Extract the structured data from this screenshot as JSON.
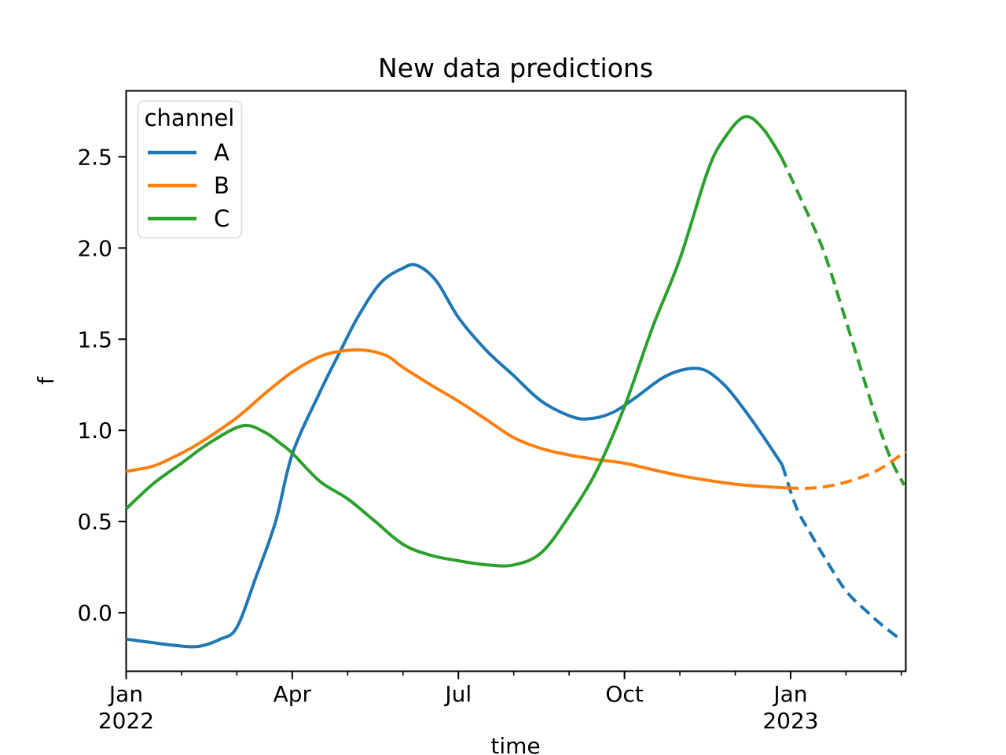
{
  "figure": {
    "background": "#ffffff",
    "spine_color": "#000000"
  },
  "chart_data": {
    "type": "line",
    "title": "New data predictions",
    "xlabel": "time",
    "ylabel": "f",
    "x_unit": "months since Jan 2022",
    "xlim": [
      0,
      14.08
    ],
    "ylim": [
      -0.321,
      2.862
    ],
    "grid": false,
    "x_ticks": [
      {
        "x": 0,
        "label": "Jan",
        "sublabel": "2022"
      },
      {
        "x": 3,
        "label": "Apr",
        "sublabel": ""
      },
      {
        "x": 6,
        "label": "Jul",
        "sublabel": ""
      },
      {
        "x": 9,
        "label": "Oct",
        "sublabel": ""
      },
      {
        "x": 12,
        "label": "Jan",
        "sublabel": "2023"
      }
    ],
    "x_minor_ticks": [
      1,
      2,
      4,
      5,
      7,
      8,
      10,
      11,
      13,
      14
    ],
    "y_ticks": [
      0.0,
      0.5,
      1.0,
      1.5,
      2.0,
      2.5
    ],
    "line_styles": {
      "solid": "observed data",
      "dashed": "prediction"
    },
    "legend": {
      "title": "channel",
      "position": "upper left",
      "labels": [
        "A",
        "B",
        "C"
      ]
    },
    "series": [
      {
        "name": "A",
        "color": "#1f77b4",
        "solid": [
          [
            0,
            -0.145
          ],
          [
            0.5,
            -0.165
          ],
          [
            0.9,
            -0.18
          ],
          [
            1.3,
            -0.185
          ],
          [
            1.7,
            -0.145
          ],
          [
            2.0,
            -0.08
          ],
          [
            2.35,
            0.2
          ],
          [
            2.7,
            0.5
          ],
          [
            3.0,
            0.87
          ],
          [
            3.5,
            1.21
          ],
          [
            3.86,
            1.43
          ],
          [
            4.2,
            1.63
          ],
          [
            4.6,
            1.81
          ],
          [
            5.0,
            1.89
          ],
          [
            5.25,
            1.905
          ],
          [
            5.6,
            1.82
          ],
          [
            6.0,
            1.62
          ],
          [
            6.5,
            1.44
          ],
          [
            7.0,
            1.3
          ],
          [
            7.5,
            1.16
          ],
          [
            8.05,
            1.075
          ],
          [
            8.4,
            1.065
          ],
          [
            8.8,
            1.1
          ],
          [
            9.2,
            1.18
          ],
          [
            9.7,
            1.29
          ],
          [
            10.1,
            1.335
          ],
          [
            10.45,
            1.33
          ],
          [
            10.8,
            1.25
          ],
          [
            11.1,
            1.14
          ],
          [
            11.5,
            0.97
          ],
          [
            11.85,
            0.81
          ]
        ],
        "dashed": [
          [
            11.85,
            0.81
          ],
          [
            12.1,
            0.58
          ],
          [
            12.35,
            0.44
          ],
          [
            12.6,
            0.31
          ],
          [
            13.0,
            0.12
          ],
          [
            13.4,
            0.0
          ],
          [
            13.7,
            -0.08
          ],
          [
            14.0,
            -0.15
          ]
        ]
      },
      {
        "name": "B",
        "color": "#ff7f0e",
        "solid": [
          [
            0,
            0.775
          ],
          [
            0.5,
            0.805
          ],
          [
            1.0,
            0.875
          ],
          [
            1.35,
            0.935
          ],
          [
            2.0,
            1.07
          ],
          [
            2.5,
            1.2
          ],
          [
            3.0,
            1.32
          ],
          [
            3.5,
            1.405
          ],
          [
            3.9,
            1.435
          ],
          [
            4.3,
            1.44
          ],
          [
            4.7,
            1.41
          ],
          [
            5.0,
            1.345
          ],
          [
            5.5,
            1.25
          ],
          [
            6.0,
            1.16
          ],
          [
            6.5,
            1.06
          ],
          [
            7.0,
            0.96
          ],
          [
            7.5,
            0.9
          ],
          [
            8.0,
            0.865
          ],
          [
            8.5,
            0.84
          ],
          [
            9.0,
            0.82
          ],
          [
            9.5,
            0.785
          ],
          [
            10.0,
            0.752
          ],
          [
            10.5,
            0.726
          ],
          [
            11.0,
            0.705
          ],
          [
            11.5,
            0.692
          ],
          [
            11.93,
            0.685
          ]
        ],
        "dashed": [
          [
            11.93,
            0.685
          ],
          [
            12.3,
            0.682
          ],
          [
            12.7,
            0.695
          ],
          [
            13.1,
            0.725
          ],
          [
            13.5,
            0.77
          ],
          [
            13.8,
            0.825
          ],
          [
            14.08,
            0.885
          ]
        ]
      },
      {
        "name": "C",
        "color": "#2ca02c",
        "solid": [
          [
            0,
            0.57
          ],
          [
            0.5,
            0.71
          ],
          [
            1.0,
            0.82
          ],
          [
            1.5,
            0.93
          ],
          [
            2.1,
            1.025
          ],
          [
            2.5,
            0.99
          ],
          [
            2.8,
            0.925
          ],
          [
            3.0,
            0.875
          ],
          [
            3.5,
            0.72
          ],
          [
            4.0,
            0.625
          ],
          [
            4.5,
            0.5
          ],
          [
            5.0,
            0.375
          ],
          [
            5.5,
            0.315
          ],
          [
            6.0,
            0.285
          ],
          [
            6.5,
            0.263
          ],
          [
            7.0,
            0.262
          ],
          [
            7.5,
            0.33
          ],
          [
            8.0,
            0.53
          ],
          [
            8.5,
            0.78
          ],
          [
            9.0,
            1.13
          ],
          [
            9.5,
            1.56
          ],
          [
            10.0,
            1.94
          ],
          [
            10.5,
            2.42
          ],
          [
            10.8,
            2.6
          ],
          [
            11.17,
            2.72
          ],
          [
            11.5,
            2.655
          ],
          [
            11.83,
            2.5
          ]
        ],
        "dashed": [
          [
            11.83,
            2.5
          ],
          [
            12.2,
            2.26
          ],
          [
            12.6,
            1.98
          ],
          [
            13.0,
            1.6
          ],
          [
            13.49,
            1.12
          ],
          [
            13.8,
            0.85
          ],
          [
            14.05,
            0.7
          ]
        ]
      }
    ]
  }
}
